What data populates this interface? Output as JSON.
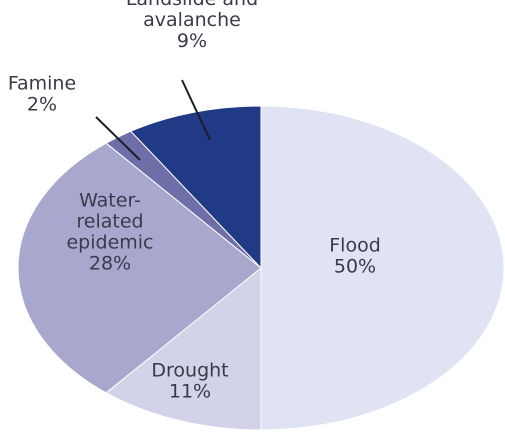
{
  "chart_data": {
    "type": "pie",
    "slices": [
      {
        "label_lines": [
          "Flood",
          "50%"
        ],
        "category": "Flood",
        "value": 50,
        "color": "#dfe3f3"
      },
      {
        "label_lines": [
          "Drought",
          "11%"
        ],
        "category": "Drought",
        "value": 11,
        "color": "#d2d2e8"
      },
      {
        "label_lines": [
          "Water-",
          "related",
          "epidemic",
          "28%"
        ],
        "category": "Water-related epidemic",
        "value": 28,
        "color": "#a8a8cf"
      },
      {
        "label_lines": [
          "Famine",
          "2%"
        ],
        "category": "Famine",
        "value": 2,
        "color": "#6e6ea8"
      },
      {
        "label_lines": [
          "Landslide and",
          "avalanche",
          "9%"
        ],
        "category": "Landslide and avalanche",
        "value": 9,
        "color": "#203a86"
      }
    ]
  }
}
